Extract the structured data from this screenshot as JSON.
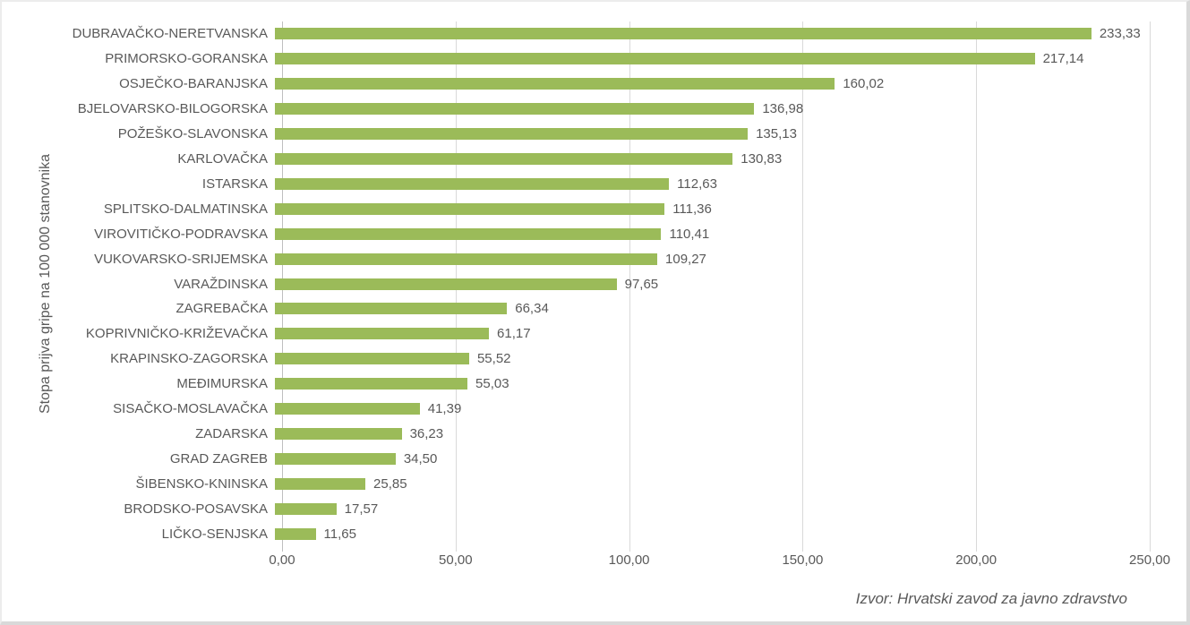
{
  "chart_data": {
    "type": "bar",
    "orientation": "horizontal",
    "title": "",
    "xlabel": "",
    "ylabel": "Stopa prijva gripe na 100 000 stanovnika",
    "xlim": [
      0,
      250
    ],
    "x_tick_values": [
      0,
      50,
      100,
      150,
      200,
      250
    ],
    "x_tick_labels": [
      "0,00",
      "50,00",
      "100,00",
      "150,00",
      "200,00",
      "250,00"
    ],
    "grid": "vertical-gridlines-on",
    "legend": "none",
    "bar_color": "#9bbb59",
    "gridline_color": "#d9d9d9",
    "axis_line_color": "#bfbfbf",
    "text_color": "#595959",
    "categories": [
      "DUBRAVAČKO-NERETVANSKA",
      "PRIMORSKO-GORANSKA",
      "OSJEČKO-BARANJSKA",
      "BJELOVARSKO-BILOGORSKA",
      "POŽEŠKO-SLAVONSKA",
      "KARLOVAČKA",
      "ISTARSKA",
      "SPLITSKO-DALMATINSKA",
      "VIROVITIČKO-PODRAVSKA",
      "VUKOVARSKO-SRIJEMSKA",
      "VARAŽDINSKA",
      "ZAGREBAČKA",
      "KOPRIVNIČKO-KRIŽEVAČKA",
      "KRAPINSKO-ZAGORSKA",
      "MEĐIMURSKA",
      "SISAČKO-MOSLAVAČKA",
      "ZADARSKA",
      "GRAD ZAGREB",
      "ŠIBENSKO-KNINSKA",
      "BRODSKO-POSAVSKA",
      "LIČKO-SENJSKA"
    ],
    "values": [
      233.33,
      217.14,
      160.02,
      136.98,
      135.13,
      130.83,
      112.63,
      111.36,
      110.41,
      109.27,
      97.65,
      66.34,
      61.17,
      55.52,
      55.03,
      41.39,
      36.23,
      34.5,
      25.85,
      17.57,
      11.65
    ],
    "value_labels": [
      "233,33",
      "217,14",
      "160,02",
      "136,98",
      "135,13",
      "130,83",
      "112,63",
      "111,36",
      "110,41",
      "109,27",
      "97,65",
      "66,34",
      "61,17",
      "55,52",
      "55,03",
      "41,39",
      "36,23",
      "34,50",
      "25,85",
      "17,57",
      "11,65"
    ],
    "source_note": "Izvor: Hrvatski zavod za javno zdravstvo"
  }
}
